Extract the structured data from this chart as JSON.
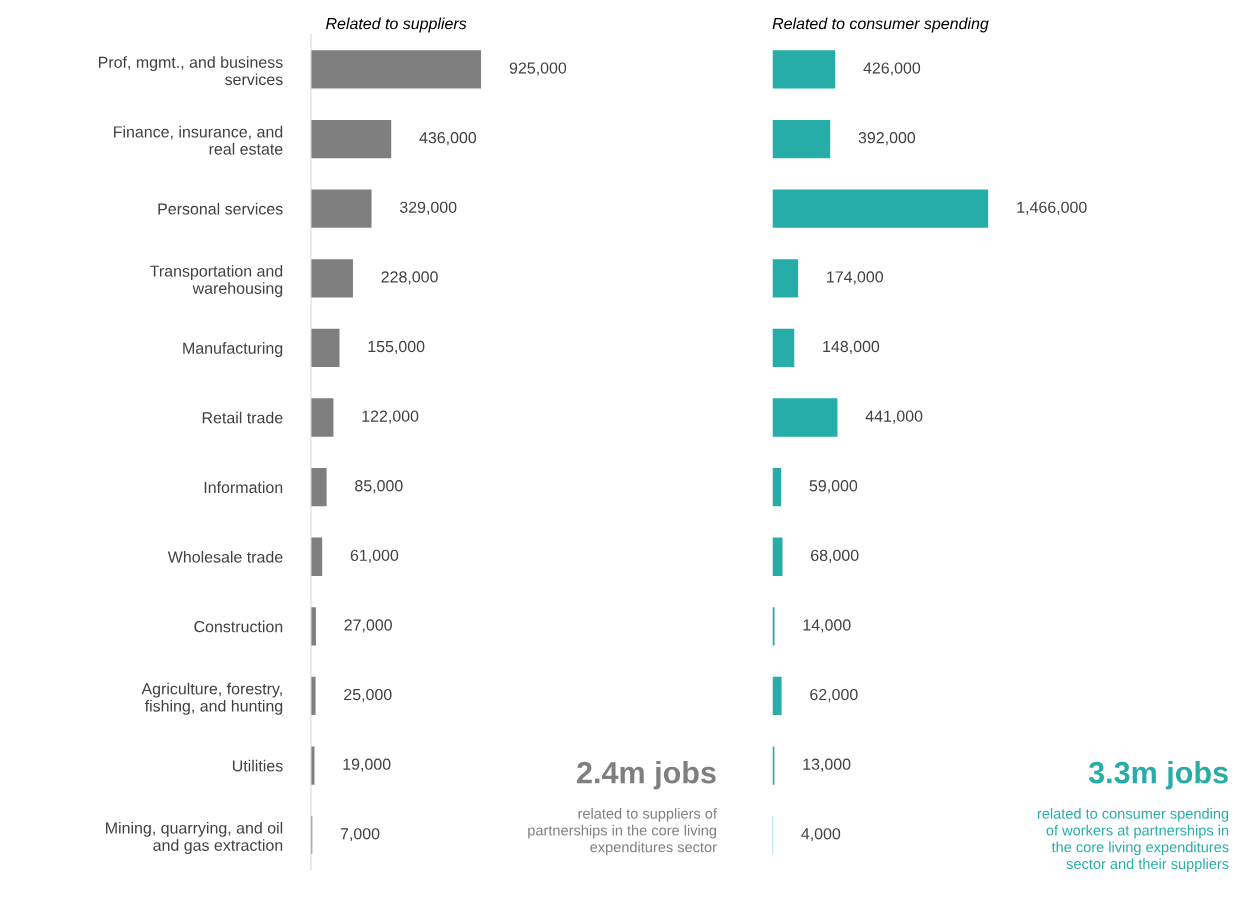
{
  "chart_data": [
    {
      "type": "bar",
      "orientation": "horizontal",
      "title": "Related to suppliers",
      "categories": [
        "Prof, mgmt., and business\nservices",
        "Finance, insurance, and\nreal estate",
        "Personal services",
        "Transportation and\nwarehousing",
        "Manufacturing",
        "Retail trade",
        "Information",
        "Wholesale trade",
        "Construction",
        "Agriculture, forestry,\nfishing, and hunting",
        "Utilities",
        "Mining, quarrying, and oil\nand gas extraction"
      ],
      "values": [
        925000,
        436000,
        329000,
        228000,
        155000,
        122000,
        85000,
        61000,
        27000,
        25000,
        19000,
        7000
      ],
      "value_labels": [
        "925,000",
        "436,000",
        "329,000",
        "228,000",
        "155,000",
        "122,000",
        "85,000",
        "61,000",
        "27,000",
        "25,000",
        "19,000",
        "7,000"
      ],
      "color": "#7f7f7f",
      "tick_labels": "y",
      "grid": false,
      "legend": false,
      "annotations": [
        "2.4m jobs",
        "related to suppliers of\npartnerships in the core living\nexpenditures sector"
      ]
    },
    {
      "type": "bar",
      "orientation": "horizontal",
      "title": "Related to consumer spending",
      "categories": [
        null,
        null,
        null,
        null,
        null,
        null,
        null,
        null,
        null,
        null,
        null,
        null
      ],
      "values": [
        426000,
        392000,
        1466000,
        174000,
        148000,
        441000,
        59000,
        68000,
        14000,
        62000,
        13000,
        4000
      ],
      "value_labels": [
        "426,000",
        "392,000",
        "1,466,000",
        "174,000",
        "148,000",
        "441,000",
        "59,000",
        "68,000",
        "14,000",
        "62,000",
        "13,000",
        "4,000"
      ],
      "color": "#26ada8",
      "tick_labels": false,
      "grid": false,
      "legend": false,
      "annotations": [
        "3.3m jobs",
        "related to consumer spending\nof workers at partnerships in\nthe core living expenditures\nsector and their suppliers"
      ]
    }
  ]
}
